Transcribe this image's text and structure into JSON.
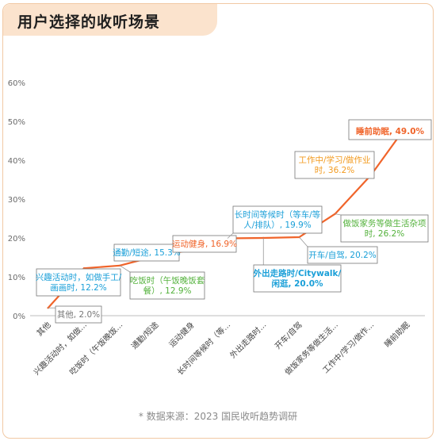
{
  "page": {
    "title": "用户选择的收听场景",
    "source": "* 数据来源：2023 国民收听趋势调研"
  },
  "chart_data": {
    "type": "line",
    "ylim": [
      0,
      60
    ],
    "yticks": [
      "0%",
      "10%",
      "20%",
      "30%",
      "40%",
      "50%",
      "60%"
    ],
    "categories": [
      "其他",
      "兴趣活动时，如做...",
      "吃饭时（午饭晚饭...",
      "通勤/短途",
      "运动健身",
      "长时间等候时（等...",
      "外出走路时...",
      "开车/自驾",
      "做饭家务等做生活...",
      "工作中/学习/做作...",
      "睡前助眠"
    ],
    "values": [
      2.0,
      12.2,
      12.9,
      15.3,
      16.9,
      19.9,
      20.0,
      20.2,
      26.2,
      36.2,
      49.0
    ],
    "annotations": [
      {
        "lines": [
          "其他, 2.0%"
        ]
      },
      {
        "lines": [
          "兴趣活动时，如做手工/",
          "画画时, 12.2%"
        ]
      },
      {
        "lines": [
          "吃饭时（午饭晚饭套",
          "餐）, 12.9%"
        ]
      },
      {
        "lines": [
          "通勤/短途, 15.3%"
        ]
      },
      {
        "lines": [
          "运动健身, 16.9%"
        ]
      },
      {
        "lines": [
          "长时间等候时（等车/等",
          "人/排队）, 19.9%"
        ]
      },
      {
        "lines": [
          "外出走路时/Citywalk/",
          "闲逛, 20.0%"
        ]
      },
      {
        "lines": [
          "开车/自驾, 20.2%"
        ]
      },
      {
        "lines": [
          "做饭家务等做生活杂项",
          "时, 26.2%"
        ]
      },
      {
        "lines": [
          "工作中/学习/做作业",
          "时, 36.2%"
        ]
      },
      {
        "lines": [
          "睡前助眠, 49.0%"
        ]
      }
    ],
    "colors": {
      "line": "#f0642a",
      "blue": "#1a9fd8",
      "green": "#52b13a",
      "orange": "#f29a1e",
      "red": "#f0642a",
      "gray": "#777777"
    }
  }
}
